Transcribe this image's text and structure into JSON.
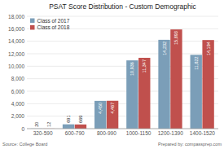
{
  "chart_data": {
    "type": "bar",
    "title": "PSAT Score Distribution - Custom Demographic",
    "categories": [
      "320-590",
      "600-790",
      "800-990",
      "1000-1150",
      "1200-1390",
      "1400-1520"
    ],
    "series": [
      {
        "name": "Class of 2017",
        "color": "#7b9eb8",
        "values": [
          20,
          691,
          4450,
          10936,
          14232,
          11822
        ],
        "value_labels": [
          "20",
          "691",
          "4,450",
          "10,936",
          "14,232",
          "11,822"
        ]
      },
      {
        "name": "Class of 2018",
        "color": "#c0504d",
        "values": [
          12,
          669,
          4467,
          11347,
          15893,
          14194
        ],
        "value_labels": [
          "12",
          "669",
          "4,467",
          "11,347",
          "15,893",
          "14,194"
        ]
      }
    ],
    "ylim": [
      0,
      18000
    ],
    "yticks": [
      0,
      {
        "value": 2000,
        "label": "2,000"
      },
      {
        "value": 4000,
        "label": "4,000"
      },
      {
        "value": 6000,
        "label": "6,000"
      },
      {
        "value": 8000,
        "label": "8,000"
      },
      {
        "value": 10000,
        "label": "10,000"
      },
      {
        "value": 12000,
        "label": "12,000"
      },
      {
        "value": 14000,
        "label": "14,000"
      },
      {
        "value": 16000,
        "label": "16,000"
      },
      {
        "value": 18000,
        "label": "18,000"
      }
    ],
    "grid": true,
    "legend": "upper left",
    "data_labels": true,
    "annotations": [
      "Source: College Board",
      "Prepared by: compassprep.com"
    ]
  }
}
